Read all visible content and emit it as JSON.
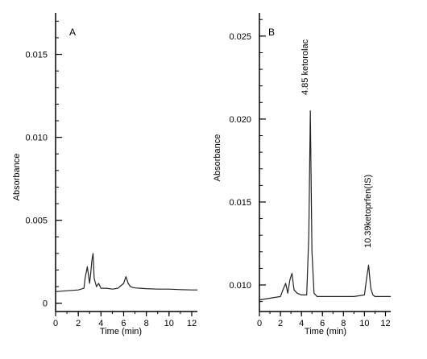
{
  "chart_data": [
    {
      "type": "line",
      "panel_label": "A",
      "xlabel": "Time (min)",
      "ylabel": "Absorbance",
      "xlim": [
        0,
        12.5
      ],
      "ylim": [
        -0.0005,
        0.0175
      ],
      "x_ticks": [
        "0",
        "2",
        "4",
        "6",
        "8",
        "10",
        "12"
      ],
      "y_ticks": [
        "0",
        "0.005",
        "0.010",
        "0.015"
      ],
      "y_tick_values": [
        0,
        0.005,
        0.01,
        0.015
      ],
      "grid": false,
      "series": [
        {
          "x": [
            0,
            1,
            2,
            2.5,
            2.6,
            2.8,
            3.0,
            3.1,
            3.2,
            3.3,
            3.4,
            3.6,
            3.8,
            4.0,
            4.5,
            5.0,
            5.5,
            6.0,
            6.2,
            6.4,
            6.6,
            6.8,
            7.0,
            7.5,
            8,
            9,
            10,
            11,
            12,
            12.5
          ],
          "y": [
            0.0007,
            0.00075,
            0.0008,
            0.0009,
            0.0015,
            0.0022,
            0.0012,
            0.0018,
            0.0026,
            0.003,
            0.0015,
            0.001,
            0.0012,
            0.0009,
            0.0009,
            0.00085,
            0.0009,
            0.0012,
            0.0016,
            0.0012,
            0.001,
            0.00095,
            0.00092,
            0.0009,
            0.00088,
            0.00085,
            0.00085,
            0.00082,
            0.0008,
            0.0008
          ]
        }
      ],
      "annotations": []
    },
    {
      "type": "line",
      "panel_label": "B",
      "xlabel": "Time (min)",
      "ylabel": "Absorbance",
      "xlim": [
        0,
        12.5
      ],
      "ylim": [
        0.0084,
        0.0264
      ],
      "x_ticks": [
        "0",
        "2",
        "4",
        "6",
        "8",
        "10",
        "12"
      ],
      "y_ticks": [
        "0.010",
        "0.015",
        "0.020",
        "0.025"
      ],
      "y_tick_values": [
        0.01,
        0.015,
        0.02,
        0.025
      ],
      "grid": false,
      "series": [
        {
          "x": [
            0,
            1,
            2,
            2.3,
            2.5,
            2.7,
            2.9,
            3.1,
            3.3,
            3.6,
            4.0,
            4.5,
            4.7,
            4.85,
            5.0,
            5.2,
            5.5,
            6,
            7,
            8,
            9,
            10,
            10.2,
            10.39,
            10.6,
            10.8,
            11,
            12,
            12.5
          ],
          "y": [
            0.0091,
            0.0092,
            0.0093,
            0.0098,
            0.0101,
            0.0095,
            0.0103,
            0.0107,
            0.0097,
            0.0095,
            0.0094,
            0.0094,
            0.013,
            0.0205,
            0.012,
            0.0095,
            0.0093,
            0.0093,
            0.0093,
            0.0093,
            0.0093,
            0.0094,
            0.0104,
            0.0112,
            0.0098,
            0.0094,
            0.0093,
            0.0093,
            0.0093
          ]
        }
      ],
      "annotations": [
        "4.85 ketorolac",
        "10.39ketoprfen(IS)"
      ]
    }
  ]
}
